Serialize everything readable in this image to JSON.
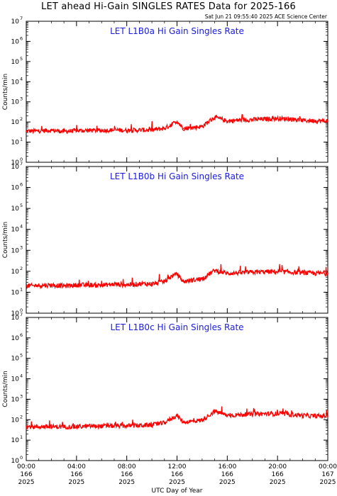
{
  "header": {
    "title": "LET ahead Hi-Gain SINGLES RATES Data for 2025-166",
    "timestamp": "Sat Jun 21 09:55:40 2025 ACE Science Center"
  },
  "colors": {
    "series": "#ff0000",
    "panel_title": "#1a1ae6",
    "axes": "#000000"
  },
  "chart_data": [
    {
      "type": "line",
      "title": "LET L1B0a Hi Gain Singles Rate",
      "ylabel": "Counts/min",
      "xlabel": "UTC Day of Year",
      "yscale": "log",
      "ylim": [
        1,
        10000000
      ],
      "xlim": [
        0,
        24
      ],
      "grid": false,
      "x": [
        0,
        1,
        2,
        3,
        4,
        5,
        6,
        7,
        8,
        9,
        10,
        11,
        11.5,
        12,
        12.5,
        13,
        14,
        15,
        16,
        17,
        18,
        19,
        20,
        21,
        22,
        23,
        24
      ],
      "series": [
        {
          "values": [
            35,
            36,
            38,
            34,
            37,
            38,
            38,
            40,
            38,
            40,
            40,
            48,
            70,
            110,
            48,
            50,
            60,
            175,
            110,
            125,
            130,
            140,
            150,
            140,
            120,
            115,
            110
          ]
        }
      ]
    },
    {
      "type": "line",
      "title": "LET L1B0b Hi Gain Singles Rate",
      "ylabel": "Counts/min",
      "xlabel": "UTC Day of Year",
      "yscale": "log",
      "ylim": [
        1,
        10000000
      ],
      "xlim": [
        0,
        24
      ],
      "grid": false,
      "x": [
        0,
        1,
        2,
        3,
        4,
        5,
        6,
        7,
        8,
        9,
        10,
        11,
        11.5,
        12,
        12.5,
        13,
        14,
        15,
        16,
        17,
        18,
        19,
        20,
        21,
        22,
        23,
        24
      ],
      "series": [
        {
          "values": [
            20,
            21,
            22,
            20,
            22,
            22,
            22,
            24,
            23,
            25,
            25,
            32,
            55,
            75,
            32,
            36,
            44,
            110,
            80,
            85,
            90,
            95,
            95,
            90,
            85,
            80,
            80
          ]
        }
      ]
    },
    {
      "type": "line",
      "title": "LET L1B0c Hi Gain Singles Rate",
      "ylabel": "Counts/min",
      "xlabel": "UTC Day of Year",
      "yscale": "log",
      "ylim": [
        1,
        10000000
      ],
      "xlim": [
        0,
        24
      ],
      "grid": false,
      "x": [
        0,
        1,
        2,
        3,
        4,
        5,
        6,
        7,
        8,
        9,
        10,
        11,
        11.5,
        12,
        12.5,
        13,
        14,
        15,
        16,
        17,
        18,
        19,
        20,
        21,
        22,
        23,
        24
      ],
      "series": [
        {
          "values": [
            45,
            45,
            45,
            45,
            45,
            48,
            48,
            50,
            50,
            52,
            55,
            70,
            110,
            160,
            75,
            80,
            95,
            260,
            160,
            175,
            185,
            195,
            195,
            180,
            160,
            150,
            150
          ]
        }
      ]
    }
  ],
  "x_ticks": [
    {
      "value": 0,
      "time": "00:00",
      "day": "166",
      "year": "2025"
    },
    {
      "value": 4,
      "time": "04:00",
      "day": "166",
      "year": "2025"
    },
    {
      "value": 8,
      "time": "08:00",
      "day": "166",
      "year": "2025"
    },
    {
      "value": 12,
      "time": "12:00",
      "day": "166",
      "year": "2025"
    },
    {
      "value": 16,
      "time": "16:00",
      "day": "166",
      "year": "2025"
    },
    {
      "value": 20,
      "time": "20:00",
      "day": "166",
      "year": "2025"
    },
    {
      "value": 24,
      "time": "00:00",
      "day": "167",
      "year": "2025"
    }
  ],
  "y_tick_base": "10",
  "y_tick_exponents": [
    "0",
    "1",
    "2",
    "3",
    "4",
    "5",
    "6",
    "7"
  ]
}
